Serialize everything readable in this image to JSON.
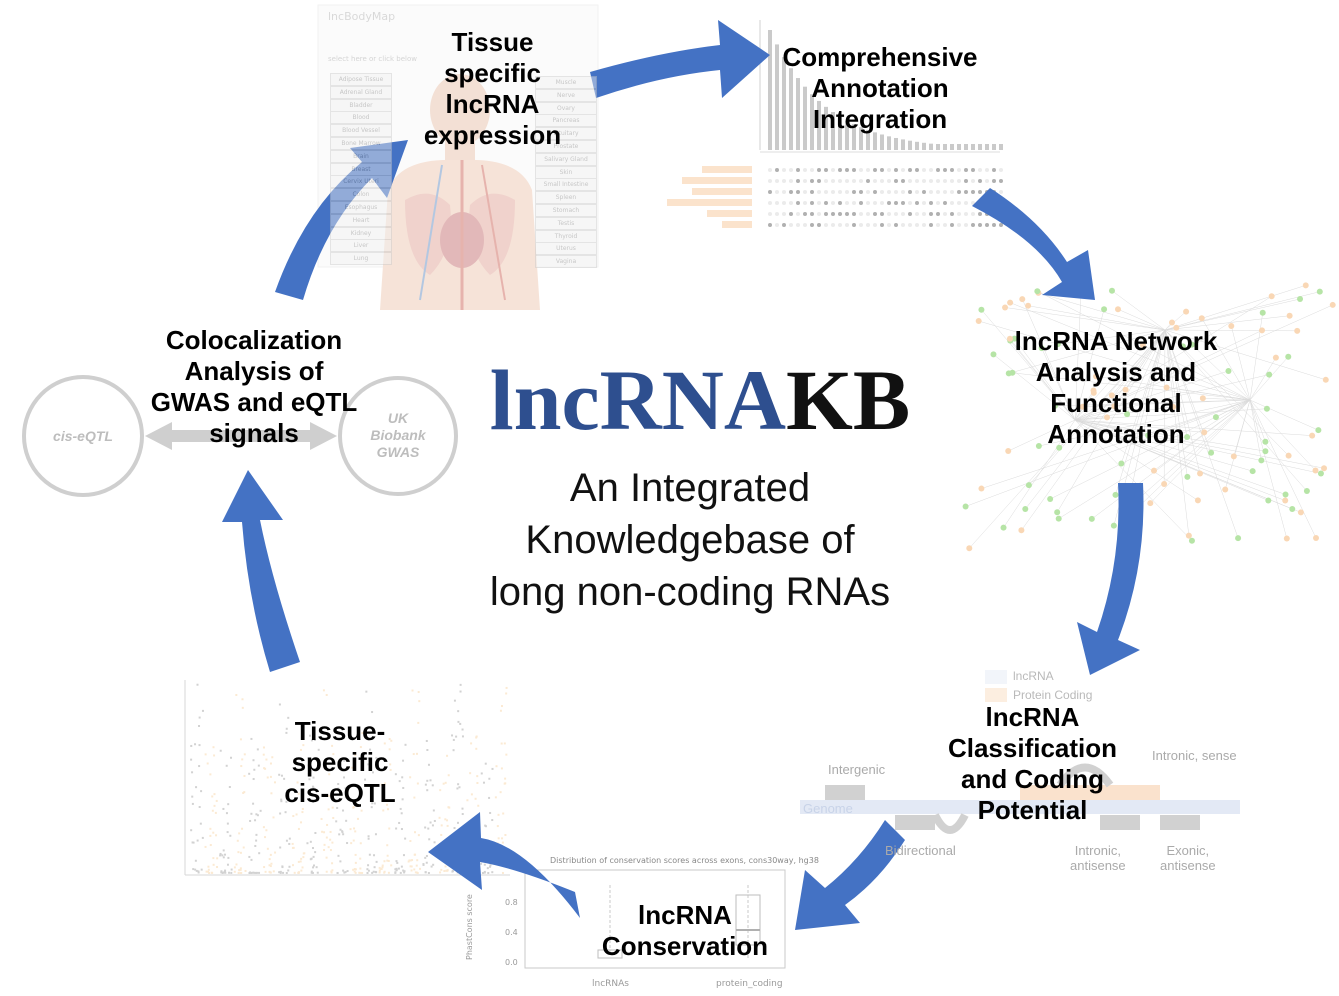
{
  "title": {
    "lnc": "lncRNA",
    "kb": "KB",
    "subtitle": "An Integrated\nKnowledgebase of\nlong non-coding RNAs"
  },
  "steps": [
    {
      "id": "tissue-expression",
      "label": "Tissue\nspecific\nlncRNA\nexpression"
    },
    {
      "id": "annotation",
      "label": "Comprehensive\nAnnotation\nIntegration"
    },
    {
      "id": "network",
      "label": "lncRNA Network\nAnalysis and\nFunctional\nAnnotation"
    },
    {
      "id": "classification",
      "label": "lncRNA\nClassification\nand Coding\nPotential"
    },
    {
      "id": "conservation",
      "label": "lncRNA\nConservation"
    },
    {
      "id": "eqtl",
      "label": "Tissue-\nspecific\ncis-eQTL"
    },
    {
      "id": "colocalization",
      "label": "Colocalization\nAnalysis of\nGWAS and eQTL\nsignals"
    }
  ],
  "colocalization_panel": {
    "left_circle": "cis-eQTL",
    "right_circle": "UK\nBiobank\nGWAS"
  },
  "bodymap_panel": {
    "title": "lncBodyMap",
    "search_hint": "select here or click below",
    "tissues_left": [
      "Adipose Tissue",
      "Adrenal Gland",
      "Bladder",
      "Blood",
      "Blood Vessel",
      "Bone Marrow",
      "Brain",
      "Breast",
      "Cervix Uteri",
      "Colon",
      "Esophagus",
      "Heart",
      "Kidney",
      "Liver",
      "Lung"
    ],
    "tissues_right": [
      "Muscle",
      "Nerve",
      "Ovary",
      "Pancreas",
      "Pituitary",
      "Prostate",
      "Salivary Gland",
      "Skin",
      "Small Intestine",
      "Spleen",
      "Stomach",
      "Testis",
      "Thyroid",
      "Uterus",
      "Vagina"
    ]
  },
  "classification_panel": {
    "legend": [
      "lncRNA",
      "Protein Coding"
    ],
    "genome_label": "Genome",
    "classes": [
      "Intergenic",
      "Intronic, sense",
      "Bidirectional",
      "Intronic,\nantisense",
      "Exonic,\nantisense"
    ]
  },
  "conservation_panel": {
    "plot_title": "Distribution of conservation scores across exons, cons30way, hg38",
    "y_axis_label": "PhastCons score",
    "y_ticks": [
      "0.0",
      "0.4",
      "0.8"
    ],
    "x_categories": [
      "lncRNAs",
      "protein_coding"
    ]
  },
  "colors": {
    "arrow": "#4472c4",
    "logo_lnc": "#2e4f8f",
    "logo_kb": "#111111",
    "network_node_green": "#7ccf5f",
    "network_node_orange": "#f5b87a",
    "manhattan_gray": "#8a8a8a",
    "manhattan_orange": "#f6c98e"
  },
  "icons": [
    "curved-arrow-icon",
    "double-arrow-icon",
    "human-anatomy-image",
    "network-graph-image",
    "manhattan-plot-image",
    "upset-plot-image"
  ]
}
